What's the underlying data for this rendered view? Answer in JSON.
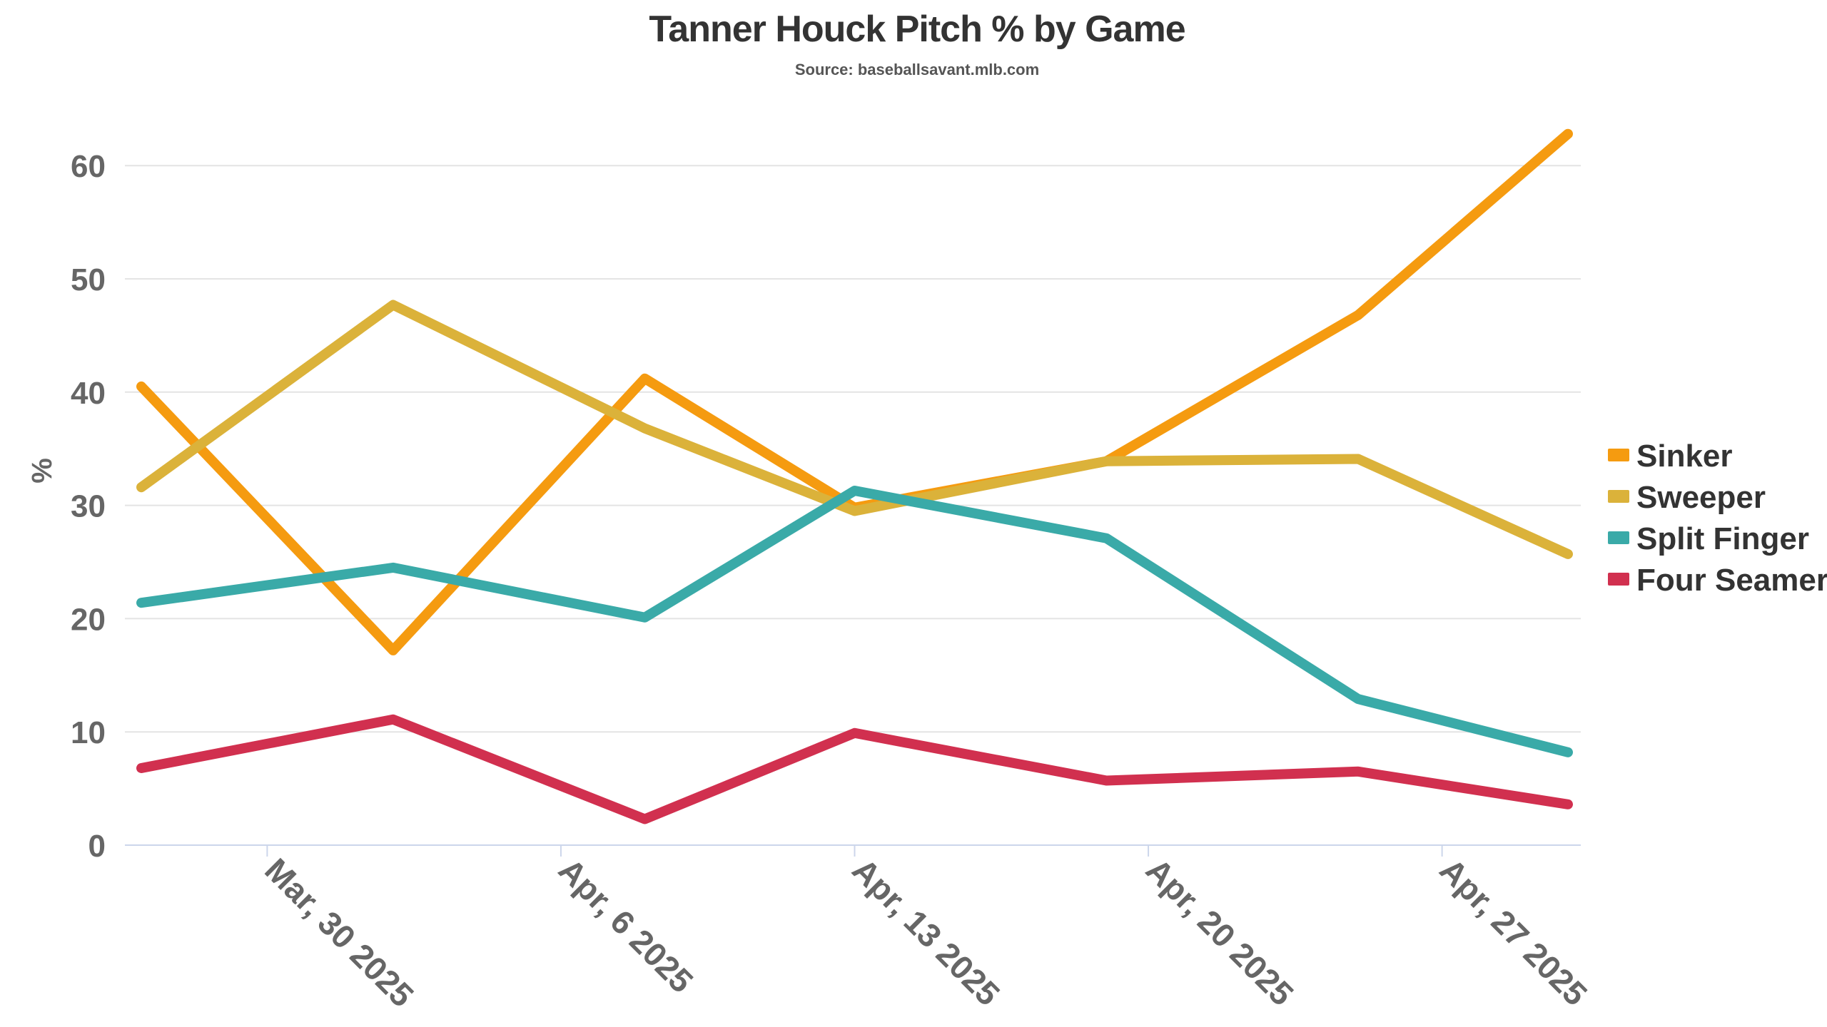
{
  "chart_data": {
    "type": "line",
    "title": "Tanner Houck Pitch % by Game",
    "subtitle": "Source: baseballsavant.mlb.com",
    "xlabel": "",
    "ylabel": "%",
    "x": [
      "2025-03-27",
      "2025-04-02",
      "2025-04-08",
      "2025-04-13",
      "2025-04-19",
      "2025-04-25",
      "2025-04-30"
    ],
    "xlim": [
      "2025-03-27",
      "2025-04-30"
    ],
    "x_ticks": [
      {
        "date": "2025-03-30",
        "label": "Mar, 30 2025"
      },
      {
        "date": "2025-04-06",
        "label": "Apr, 6 2025"
      },
      {
        "date": "2025-04-13",
        "label": "Apr, 13 2025"
      },
      {
        "date": "2025-04-20",
        "label": "Apr, 20 2025"
      },
      {
        "date": "2025-04-27",
        "label": "Apr, 27 2025"
      }
    ],
    "y_ticks": [
      "0",
      "10",
      "20",
      "30",
      "40",
      "50",
      "60"
    ],
    "ylim": [
      0,
      60
    ],
    "grid": true,
    "legend_position": "right",
    "series": [
      {
        "name": "Sinker",
        "color": "#f59b10",
        "values": [
          40.5,
          17.2,
          41.2,
          29.8,
          33.9,
          46.8,
          62.8
        ]
      },
      {
        "name": "Sweeper",
        "color": "#dbb23a",
        "values": [
          31.6,
          47.7,
          36.8,
          29.5,
          33.9,
          34.1,
          25.7
        ]
      },
      {
        "name": "Split Finger",
        "color": "#3aaaa8",
        "values": [
          21.4,
          24.5,
          20.1,
          31.3,
          27.1,
          12.9,
          8.2
        ]
      },
      {
        "name": "Four Seamer",
        "color": "#d1304f",
        "values": [
          6.8,
          11.1,
          2.3,
          9.9,
          5.7,
          6.5,
          3.6
        ]
      }
    ]
  }
}
